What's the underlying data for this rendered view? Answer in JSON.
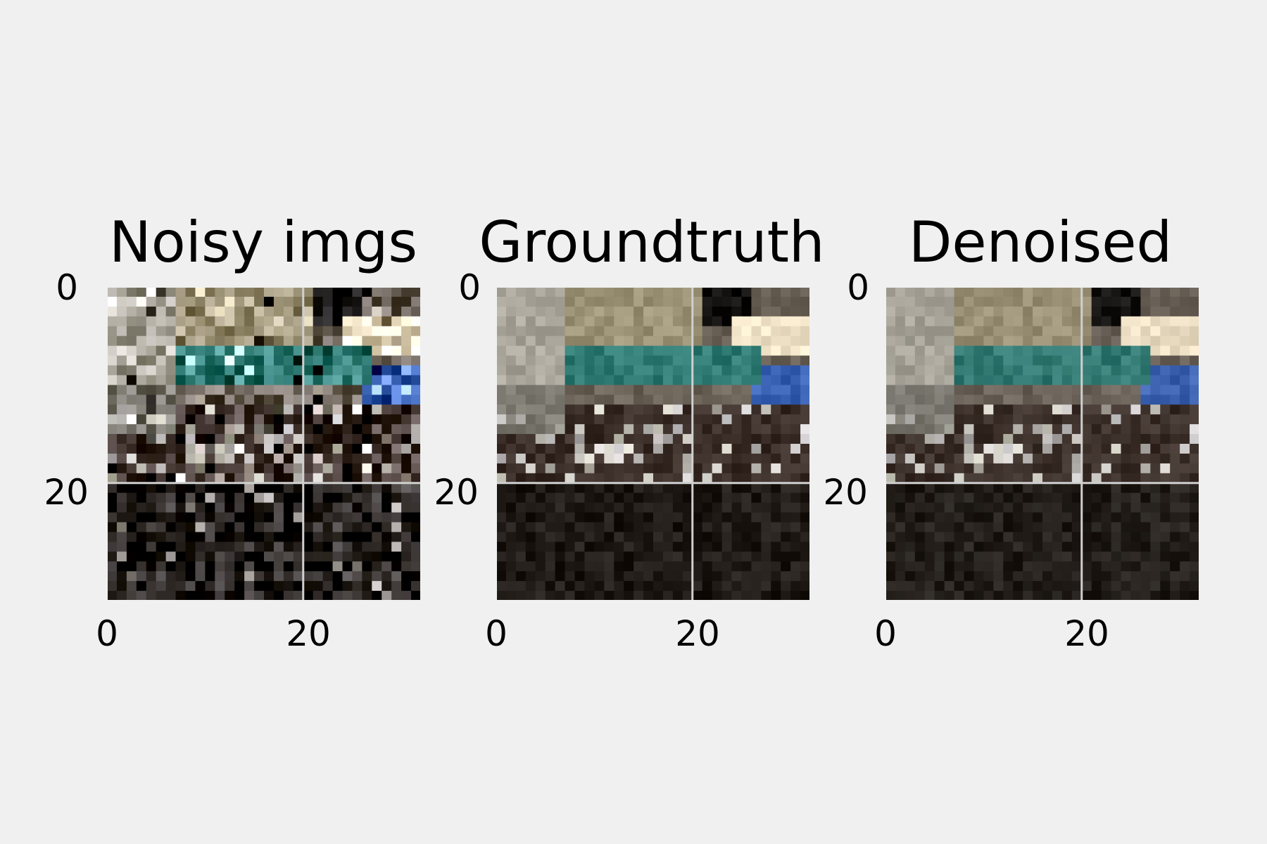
{
  "figure": {
    "background": "#f0f0f0",
    "grid_color": "#cfcfcf",
    "panel_edge_color": "#f0f0f0"
  },
  "chart_data": [
    {
      "type": "heatmap",
      "title": "Noisy imgs",
      "image_size": [
        32,
        32
      ],
      "xlim": [
        0,
        32
      ],
      "ylim": [
        32,
        0
      ],
      "xticks": [
        "0",
        "20"
      ],
      "yticks": [
        "0",
        "20"
      ],
      "grid": true,
      "description_scene_colors": [
        "#a9a59a",
        "#2f7a73",
        "#3b63b5",
        "#f2e4c8",
        "#1f1a15"
      ]
    },
    {
      "type": "heatmap",
      "title": "Groundtruth",
      "image_size": [
        32,
        32
      ],
      "xlim": [
        0,
        32
      ],
      "ylim": [
        32,
        0
      ],
      "xticks": [
        "0",
        "20"
      ],
      "yticks": [
        "0",
        "20"
      ],
      "grid": true,
      "description_scene_colors": [
        "#a9a59a",
        "#2f7a73",
        "#3b63b5",
        "#f2e4c8",
        "#1f1a15"
      ]
    },
    {
      "type": "heatmap",
      "title": "Denoised",
      "image_size": [
        32,
        32
      ],
      "xlim": [
        0,
        32
      ],
      "ylim": [
        32,
        0
      ],
      "xticks": [
        "0",
        "20"
      ],
      "yticks": [
        "0",
        "20"
      ],
      "grid": true,
      "description_scene_colors": [
        "#a9a59a",
        "#2f7a73",
        "#3b63b5",
        "#f2e4c8",
        "#1f1a15"
      ]
    }
  ]
}
